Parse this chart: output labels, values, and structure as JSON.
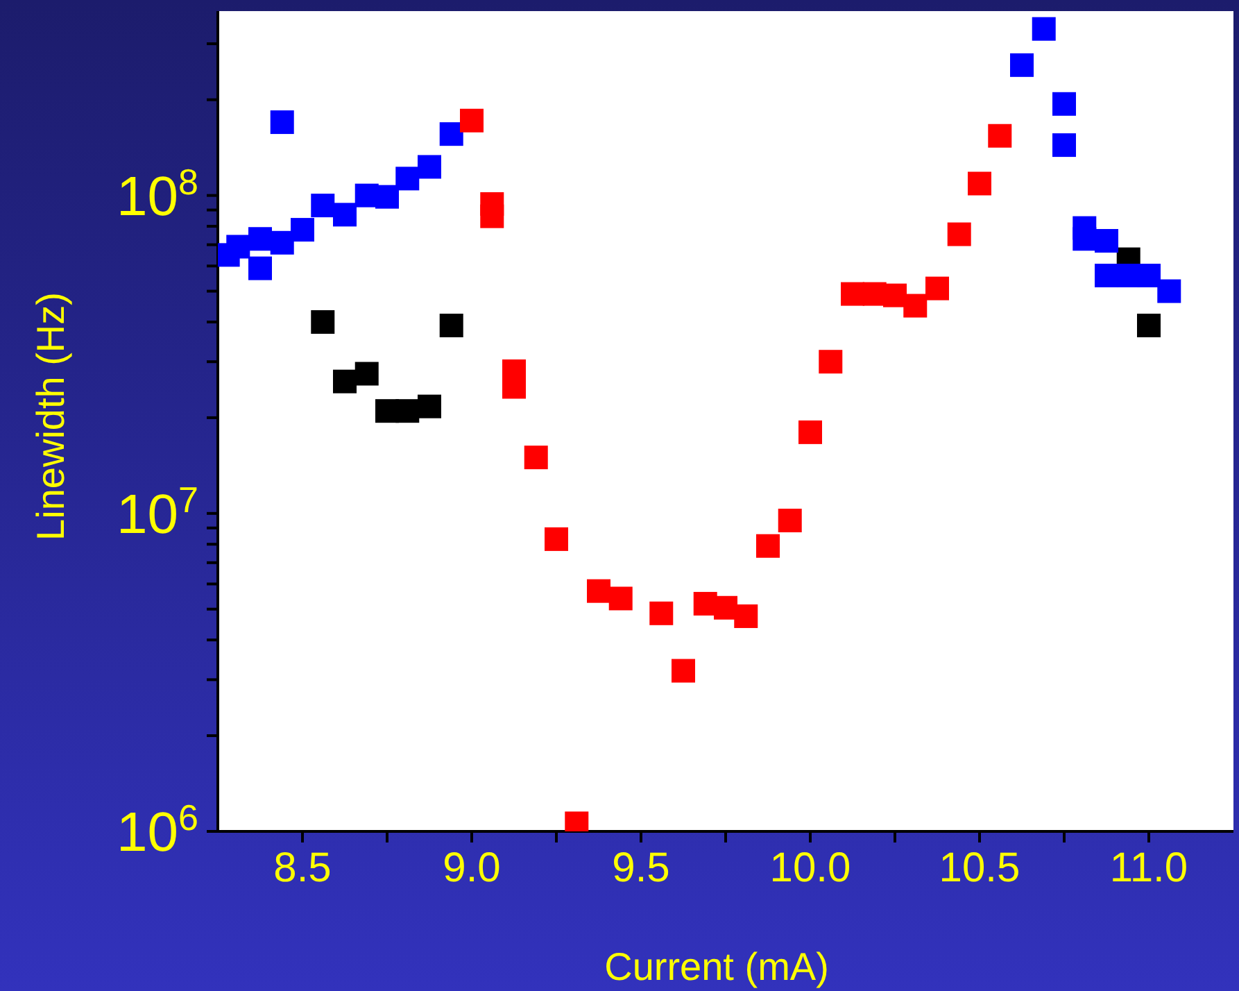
{
  "chart_data": {
    "type": "scatter",
    "xlabel": "Current (mA)",
    "ylabel": "Linewidth (Hz)",
    "log": "y",
    "marker": "square",
    "xlim": [
      8.25,
      11.25
    ],
    "ylim": [
      1000000,
      380000000
    ],
    "xticks": [
      8.5,
      {
        "value": 8.75,
        "label": null
      },
      {
        "value": 9,
        "label": "9.0"
      },
      {
        "value": 9.25,
        "label": null
      },
      9.5,
      {
        "value": 9.75,
        "label": null
      },
      {
        "value": 10,
        "label": "10.0"
      },
      {
        "value": 10.25,
        "label": null
      },
      10.5,
      {
        "value": 10.75,
        "label": null
      },
      {
        "value": 11,
        "label": "11.0"
      }
    ],
    "yticks": [
      {
        "value": 1000000,
        "label": "10$^{6}$"
      },
      {
        "value": 2000000,
        "label": null
      },
      {
        "value": 3000000,
        "label": null
      },
      {
        "value": 4000000,
        "label": null
      },
      {
        "value": 5000000,
        "label": null
      },
      {
        "value": 6000000,
        "label": null
      },
      {
        "value": 7000000,
        "label": null
      },
      {
        "value": 8000000,
        "label": null
      },
      {
        "value": 9000000,
        "label": null
      },
      {
        "value": 10000000,
        "label": "10$^{7}$"
      },
      {
        "value": 20000000,
        "label": null
      },
      {
        "value": 30000000,
        "label": null
      },
      {
        "value": 40000000,
        "label": null
      },
      {
        "value": 50000000,
        "label": null
      },
      {
        "value": 60000000,
        "label": null
      },
      {
        "value": 70000000,
        "label": null
      },
      {
        "value": 80000000,
        "label": null
      },
      {
        "value": 90000000,
        "label": null
      },
      {
        "value": 100000000,
        "label": "10$^{8}$"
      },
      {
        "value": 200000000,
        "label": null
      },
      {
        "value": 300000000,
        "label": null
      }
    ],
    "series": [
      {
        "color": "#000000",
        "x": [
          8.56,
          8.625,
          8.69,
          8.75,
          8.81,
          8.875,
          8.94,
          10.94,
          11.0
        ],
        "values": [
          40000000,
          26000000,
          27500000,
          21000000,
          21000000,
          21700000,
          39000000,
          63000000,
          39000000
        ]
      },
      {
        "color": "#0000ff",
        "x": [
          8.28,
          8.31,
          8.375,
          8.375,
          8.44,
          8.44,
          8.5,
          8.56,
          8.625,
          8.69,
          8.75,
          8.81,
          8.875,
          8.94,
          10.625,
          10.69,
          10.75,
          10.75,
          10.81,
          10.81,
          10.875,
          10.875,
          10.94,
          11.0,
          11.06
        ],
        "values": [
          65000000,
          69000000,
          73000000,
          59000000,
          170000000,
          71000000,
          78000000,
          93000000,
          87000000,
          100000000,
          99000000,
          113000000,
          123000000,
          156000000,
          257000000,
          334000000,
          194000000,
          144000000,
          79000000,
          73000000,
          72000000,
          56000000,
          56000000,
          56000000,
          50000000
        ]
      },
      {
        "color": "#ff0000",
        "x": [
          9.0,
          9.06,
          9.06,
          9.125,
          9.125,
          9.19,
          9.25,
          9.31,
          9.375,
          9.44,
          9.56,
          9.625,
          9.69,
          9.75,
          9.81,
          9.875,
          9.94,
          10.0,
          10.06,
          10.125,
          10.19,
          10.25,
          10.31,
          10.375,
          10.44,
          10.5,
          10.56
        ],
        "values": [
          172000000,
          94000000,
          86000000,
          28000000,
          25000000,
          15000000,
          8300000,
          1060000,
          5700000,
          5400000,
          4850000,
          3200000,
          5200000,
          5050000,
          4750000,
          7900000,
          9500000,
          18000000,
          30000000,
          49000000,
          49000000,
          48500000,
          45000000,
          51000000,
          75500000,
          109000000,
          154000000
        ]
      }
    ]
  }
}
